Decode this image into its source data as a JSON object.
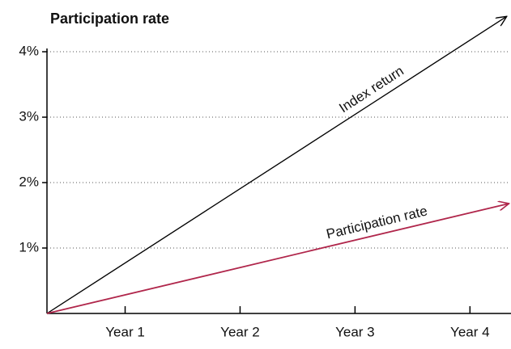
{
  "chart_data": {
    "type": "line",
    "title": "Participation rate",
    "xlim": [
      0.32,
      4.35
    ],
    "xticks": [
      {
        "value": 1,
        "label": "Year 1"
      },
      {
        "value": 2,
        "label": "Year 2"
      },
      {
        "value": 3,
        "label": "Year 3"
      },
      {
        "value": 4,
        "label": "Year 4"
      }
    ],
    "ylim": [
      0,
      4.05
    ],
    "yticks": [
      {
        "value": 1,
        "label": "1%"
      },
      {
        "value": 2,
        "label": "2%"
      },
      {
        "value": 3,
        "label": "3%"
      },
      {
        "value": 4,
        "label": "4%"
      }
    ],
    "grid": true,
    "series": [
      {
        "name": "Index return",
        "color": "#000000",
        "x": [
          0.32,
          4.32
        ],
        "values": [
          0,
          4.54
        ]
      },
      {
        "name": "Participation rate",
        "color": "#b0264b",
        "x": [
          0.32,
          4.34
        ],
        "values": [
          0,
          1.68
        ]
      }
    ]
  }
}
